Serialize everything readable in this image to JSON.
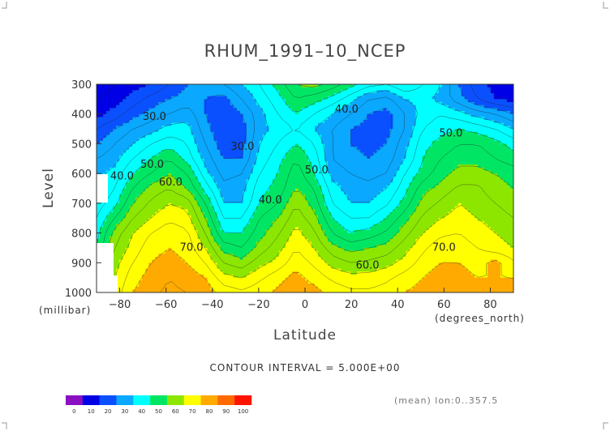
{
  "chart_data": {
    "type": "heatmap",
    "title": "RHUM_1991–10_NCEP",
    "xlabel": "Latitude",
    "ylabel": "Level",
    "x_unit": "(degrees_north)",
    "y_unit": "(millibar)",
    "x_ticks": [
      -80,
      -60,
      -40,
      -20,
      0,
      20,
      40,
      60,
      80
    ],
    "x_tick_labels": [
      "−80",
      "−60",
      "−40",
      "−20",
      "0",
      "20",
      "40",
      "60",
      "80"
    ],
    "y_ticks": [
      300,
      400,
      500,
      600,
      700,
      800,
      900,
      1000
    ],
    "y_tick_labels": [
      "300",
      "400",
      "500",
      "600",
      "700",
      "800",
      "900",
      "1000"
    ],
    "xlim": [
      -90,
      90
    ],
    "ylim": [
      1000,
      300
    ],
    "contour_interval_text": "CONTOUR INTERVAL = 5.000E+00",
    "mean_text": "(mean) lon:0..357.5",
    "colorbar_levels": [
      0,
      10,
      20,
      30,
      40,
      50,
      60,
      70,
      80,
      90,
      100
    ],
    "colorbar_labels": [
      "0",
      "10",
      "20",
      "30",
      "40",
      "50",
      "60",
      "70",
      "80",
      "90",
      "100"
    ],
    "colorbar_colors": [
      "#8a10c0",
      "#0000e6",
      "#0a50ff",
      "#0aa8ff",
      "#00ffff",
      "#00e664",
      "#8ce600",
      "#ffff00",
      "#ffaa00",
      "#ff6a00",
      "#ff1400"
    ],
    "contour_labels": [
      {
        "text": "30.0",
        "lat": -65,
        "lev": 420
      },
      {
        "text": "40.0",
        "lat": 18,
        "lev": 395
      },
      {
        "text": "50.0",
        "lat": 63,
        "lev": 475
      },
      {
        "text": "30.0",
        "lat": -27,
        "lev": 520
      },
      {
        "text": "50.0",
        "lat": -66,
        "lev": 580
      },
      {
        "text": "40.0",
        "lat": -79,
        "lev": 620
      },
      {
        "text": "60.0",
        "lat": -58,
        "lev": 640
      },
      {
        "text": "50.0",
        "lat": 5,
        "lev": 600
      },
      {
        "text": "40.0",
        "lat": -15,
        "lev": 700
      },
      {
        "text": "70.0",
        "lat": -49,
        "lev": 860
      },
      {
        "text": "70.0",
        "lat": 60,
        "lev": 860
      },
      {
        "text": "60.0",
        "lat": 27,
        "lev": 920
      }
    ],
    "rows": [
      {
        "lev": 300,
        "v": [
          10,
          15,
          18,
          20,
          25,
          30,
          32,
          35,
          40,
          45,
          52,
          60,
          62,
          58,
          52,
          47,
          45,
          50,
          45,
          40,
          30,
          22,
          18,
          15
        ]
      },
      {
        "lev": 350,
        "v": [
          15,
          18,
          22,
          27,
          30,
          32,
          30,
          28,
          35,
          42,
          48,
          55,
          52,
          48,
          42,
          35,
          33,
          40,
          42,
          38,
          32,
          25,
          20,
          18
        ]
      },
      {
        "lev": 400,
        "v": [
          18,
          22,
          28,
          32,
          35,
          38,
          30,
          25,
          30,
          38,
          45,
          50,
          45,
          40,
          35,
          30,
          28,
          35,
          42,
          45,
          42,
          38,
          35,
          30
        ]
      },
      {
        "lev": 450,
        "v": [
          25,
          30,
          35,
          38,
          42,
          42,
          32,
          25,
          27,
          38,
          42,
          45,
          40,
          35,
          30,
          28,
          28,
          35,
          45,
          48,
          50,
          48,
          45,
          40
        ]
      },
      {
        "lev": 500,
        "v": [
          30,
          35,
          40,
          45,
          48,
          45,
          35,
          27,
          28,
          40,
          45,
          50,
          45,
          35,
          30,
          28,
          30,
          38,
          48,
          52,
          55,
          55,
          52,
          48
        ]
      },
      {
        "lev": 550,
        "v": [
          35,
          38,
          45,
          50,
          55,
          48,
          38,
          30,
          30,
          42,
          48,
          55,
          48,
          35,
          32,
          30,
          32,
          40,
          50,
          55,
          58,
          58,
          55,
          52
        ]
      },
      {
        "lev": 600,
        "v": [
          38,
          42,
          50,
          55,
          60,
          55,
          42,
          33,
          35,
          45,
          50,
          58,
          50,
          38,
          35,
          33,
          35,
          45,
          52,
          58,
          62,
          62,
          60,
          58
        ]
      },
      {
        "lev": 650,
        "v": [
          40,
          45,
          55,
          62,
          65,
          60,
          48,
          37,
          38,
          48,
          52,
          60,
          55,
          42,
          38,
          37,
          40,
          48,
          58,
          62,
          66,
          66,
          62,
          60
        ]
      },
      {
        "lev": 700,
        "v": [
          42,
          48,
          60,
          66,
          70,
          68,
          55,
          40,
          40,
          50,
          55,
          65,
          58,
          45,
          40,
          40,
          44,
          52,
          62,
          66,
          70,
          68,
          65,
          62
        ]
      },
      {
        "lev": 750,
        "v": [
          45,
          55,
          65,
          70,
          74,
          72,
          60,
          45,
          45,
          55,
          60,
          68,
          62,
          50,
          45,
          45,
          50,
          58,
          66,
          70,
          72,
          70,
          68,
          65
        ]
      },
      {
        "lev": 800,
        "v": [
          48,
          62,
          70,
          75,
          78,
          76,
          65,
          50,
          50,
          58,
          64,
          72,
          66,
          55,
          50,
          52,
          56,
          63,
          70,
          74,
          75,
          72,
          70,
          68
        ]
      },
      {
        "lev": 850,
        "v": [
          50,
          65,
          72,
          78,
          80,
          78,
          70,
          58,
          55,
          62,
          68,
          75,
          70,
          62,
          58,
          60,
          62,
          68,
          74,
          78,
          78,
          75,
          72,
          70
        ]
      },
      {
        "lev": 900,
        "v": [
          52,
          68,
          75,
          80,
          82,
          80,
          75,
          65,
          62,
          68,
          72,
          78,
          74,
          68,
          65,
          66,
          68,
          72,
          77,
          80,
          80,
          78,
          82,
          76
        ]
      },
      {
        "lev": 950,
        "v": [
          55,
          70,
          78,
          82,
          85,
          83,
          80,
          72,
          70,
          74,
          78,
          82,
          78,
          74,
          72,
          72,
          74,
          77,
          80,
          83,
          82,
          80,
          80,
          80
        ]
      },
      {
        "lev": 1000,
        "v": [
          58,
          72,
          80,
          84,
          86,
          85,
          83,
          78,
          76,
          78,
          81,
          84,
          82,
          78,
          76,
          76,
          77,
          80,
          82,
          85,
          84,
          82,
          82,
          82
        ]
      }
    ]
  }
}
